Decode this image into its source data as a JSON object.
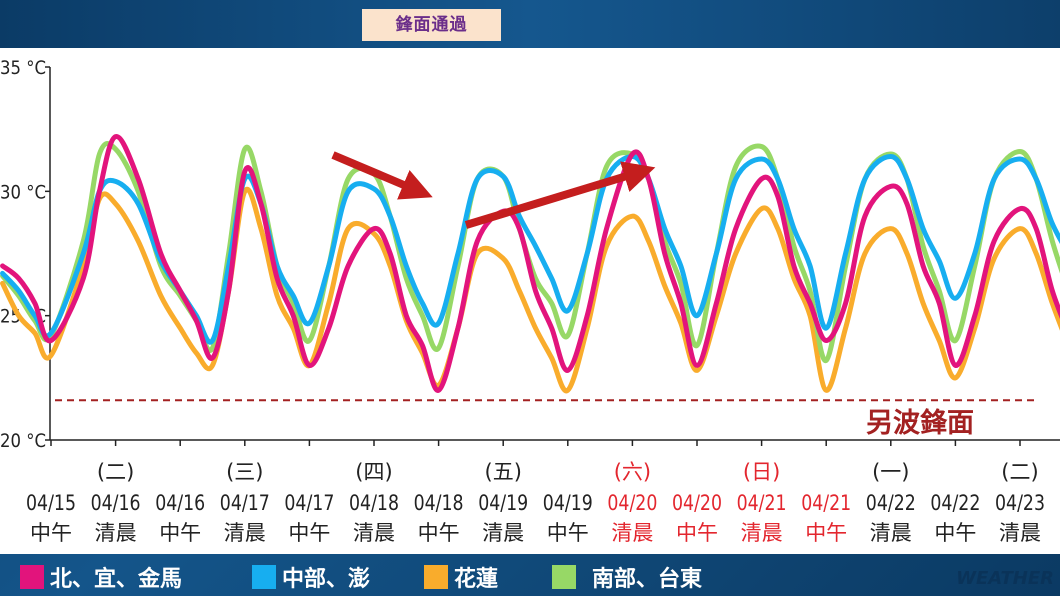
{
  "title_tag": "鋒面通過",
  "annotation_front": "另波鋒面",
  "watermark": "WEATHER",
  "legend": [
    {
      "label": "北、宜、金馬",
      "color": "#e2147c"
    },
    {
      "label": "中部、澎",
      "color": "#17aef0"
    },
    {
      "label": "花蓮",
      "color": "#f9ac2c"
    },
    {
      "label": "南部、台東",
      "color": "#97d866"
    }
  ],
  "chart_data": {
    "type": "line",
    "ylim": [
      20,
      35
    ],
    "yticks": [
      "20 °C",
      "25 °C",
      "30 °C",
      "35 °C"
    ],
    "y_tick_values": [
      20,
      25,
      30,
      35
    ],
    "xlim": [
      -0.85,
      15.75
    ],
    "x_tick_labels": [
      {
        "day": "",
        "date": "04/15",
        "time": "中午",
        "weekend": false
      },
      {
        "day": "(二)",
        "date": "04/16",
        "time": "清晨",
        "weekend": false
      },
      {
        "day": "",
        "date": "04/16",
        "time": "中午",
        "weekend": false
      },
      {
        "day": "(三)",
        "date": "04/17",
        "time": "清晨",
        "weekend": false
      },
      {
        "day": "",
        "date": "04/17",
        "time": "中午",
        "weekend": false
      },
      {
        "day": "(四)",
        "date": "04/18",
        "time": "清晨",
        "weekend": false
      },
      {
        "day": "",
        "date": "04/18",
        "time": "中午",
        "weekend": false
      },
      {
        "day": "(五)",
        "date": "04/19",
        "time": "清晨",
        "weekend": false
      },
      {
        "day": "",
        "date": "04/19",
        "time": "中午",
        "weekend": false
      },
      {
        "day": "(六)",
        "date": "04/20",
        "time": "清晨",
        "weekend": true
      },
      {
        "day": "",
        "date": "04/20",
        "time": "中午",
        "weekend": true
      },
      {
        "day": "(日)",
        "date": "04/21",
        "time": "清晨",
        "weekend": true
      },
      {
        "day": "",
        "date": "04/21",
        "time": "中午",
        "weekend": true
      },
      {
        "day": "(一)",
        "date": "04/22",
        "time": "清晨",
        "weekend": false
      },
      {
        "day": "",
        "date": "04/22",
        "time": "中午",
        "weekend": false
      },
      {
        "day": "(二)",
        "date": "04/23",
        "time": "清晨",
        "weekend": false
      }
    ],
    "reference_line": {
      "value": 21.6,
      "label": "另波鋒面"
    },
    "series": [
      {
        "name": "北、宜、金馬",
        "color": "#e2147c",
        "x": [
          -0.75,
          -0.5,
          -0.25,
          0.0,
          0.5,
          0.75,
          1.0,
          1.35,
          1.7,
          2.0,
          2.25,
          2.5,
          2.75,
          3.0,
          3.25,
          3.5,
          3.75,
          4.0,
          4.3,
          4.6,
          5.0,
          5.25,
          5.5,
          5.75,
          6.0,
          6.3,
          6.6,
          7.0,
          7.25,
          7.5,
          7.75,
          8.0,
          8.3,
          8.6,
          9.0,
          9.25,
          9.5,
          9.75,
          10.0,
          10.3,
          10.6,
          11.0,
          11.25,
          11.5,
          11.75,
          12.0,
          12.3,
          12.6,
          13.0,
          13.25,
          13.5,
          13.75,
          14.0,
          14.3,
          14.6,
          15.0,
          15.25,
          15.5,
          15.75
        ],
        "y": [
          27.0,
          26.5,
          25.5,
          24.0,
          26.5,
          30.0,
          32.2,
          30.5,
          27.5,
          26.0,
          24.8,
          23.3,
          26.0,
          30.8,
          29.5,
          26.5,
          25.0,
          23.0,
          24.5,
          27.0,
          28.5,
          27.5,
          25.0,
          23.8,
          22.0,
          24.5,
          28.0,
          29.2,
          28.5,
          26.0,
          24.5,
          22.8,
          25.0,
          28.5,
          31.5,
          30.5,
          27.5,
          25.5,
          23.0,
          25.5,
          28.5,
          30.5,
          29.8,
          27.0,
          25.5,
          24.0,
          25.5,
          29.0,
          30.2,
          29.5,
          27.0,
          25.5,
          23.0,
          25.0,
          28.0,
          29.3,
          28.5,
          26.0,
          24.3
        ]
      },
      {
        "name": "中部、澎",
        "color": "#17aef0",
        "x": [
          -0.75,
          -0.5,
          -0.25,
          0.0,
          0.5,
          0.75,
          1.0,
          1.35,
          1.7,
          2.0,
          2.25,
          2.5,
          2.75,
          3.0,
          3.25,
          3.5,
          3.75,
          4.0,
          4.3,
          4.6,
          5.0,
          5.25,
          5.5,
          5.75,
          6.0,
          6.3,
          6.6,
          7.0,
          7.25,
          7.5,
          7.75,
          8.0,
          8.3,
          8.6,
          9.0,
          9.25,
          9.5,
          9.75,
          10.0,
          10.3,
          10.6,
          11.0,
          11.25,
          11.5,
          11.75,
          12.0,
          12.3,
          12.6,
          13.0,
          13.25,
          13.5,
          13.75,
          14.0,
          14.3,
          14.6,
          15.0,
          15.25,
          15.5,
          15.75
        ],
        "y": [
          26.7,
          26.0,
          25.0,
          24.3,
          27.5,
          30.0,
          30.4,
          29.5,
          27.2,
          26.0,
          25.0,
          24.0,
          27.0,
          30.5,
          29.5,
          27.0,
          25.8,
          24.7,
          27.0,
          30.0,
          30.1,
          29.0,
          27.0,
          25.5,
          24.7,
          27.5,
          30.5,
          30.6,
          29.0,
          27.8,
          26.5,
          25.2,
          27.5,
          30.5,
          31.4,
          30.5,
          28.5,
          27.0,
          25.0,
          27.5,
          30.5,
          31.3,
          30.5,
          28.5,
          27.0,
          24.5,
          27.5,
          30.5,
          31.4,
          30.5,
          28.5,
          27.2,
          25.7,
          27.5,
          30.5,
          31.3,
          30.5,
          28.7,
          27.5
        ]
      },
      {
        "name": "花蓮",
        "color": "#f9ac2c",
        "x": [
          -0.75,
          -0.5,
          -0.25,
          0.0,
          0.5,
          0.75,
          1.0,
          1.35,
          1.7,
          2.0,
          2.25,
          2.5,
          2.75,
          3.0,
          3.25,
          3.5,
          3.75,
          4.0,
          4.3,
          4.6,
          5.0,
          5.25,
          5.5,
          5.75,
          6.0,
          6.3,
          6.6,
          7.0,
          7.25,
          7.5,
          7.75,
          8.0,
          8.3,
          8.6,
          9.0,
          9.25,
          9.5,
          9.75,
          10.0,
          10.3,
          10.6,
          11.0,
          11.25,
          11.5,
          11.75,
          12.0,
          12.3,
          12.6,
          13.0,
          13.25,
          13.5,
          13.75,
          14.0,
          14.3,
          14.6,
          15.0,
          15.25,
          15.5,
          15.75
        ],
        "y": [
          26.3,
          25.0,
          24.3,
          23.4,
          27.0,
          29.7,
          29.5,
          28.0,
          25.8,
          24.5,
          23.5,
          23.0,
          26.0,
          30.0,
          28.5,
          25.8,
          24.5,
          23.0,
          25.5,
          28.5,
          28.3,
          27.0,
          24.8,
          23.5,
          22.2,
          24.5,
          27.5,
          27.3,
          26.0,
          24.5,
          23.3,
          22.0,
          24.5,
          27.8,
          29.0,
          28.0,
          26.2,
          24.7,
          22.8,
          25.0,
          27.5,
          29.3,
          28.5,
          26.5,
          25.0,
          22.0,
          24.5,
          27.5,
          28.5,
          27.5,
          25.5,
          24.0,
          22.5,
          24.5,
          27.3,
          28.5,
          27.5,
          25.5,
          23.8
        ]
      },
      {
        "name": "南部、台東",
        "color": "#97d866",
        "x": [
          -0.75,
          -0.5,
          -0.25,
          0.0,
          0.5,
          0.75,
          1.0,
          1.35,
          1.7,
          2.0,
          2.25,
          2.5,
          2.75,
          3.0,
          3.25,
          3.5,
          3.75,
          4.0,
          4.3,
          4.6,
          5.0,
          5.25,
          5.5,
          5.75,
          6.0,
          6.3,
          6.6,
          7.0,
          7.25,
          7.5,
          7.75,
          8.0,
          8.3,
          8.6,
          9.0,
          9.25,
          9.5,
          9.75,
          10.0,
          10.3,
          10.6,
          11.0,
          11.25,
          11.5,
          11.75,
          12.0,
          12.3,
          12.6,
          13.0,
          13.25,
          13.5,
          13.75,
          14.0,
          14.3,
          14.6,
          15.0,
          15.25,
          15.5,
          15.75
        ],
        "y": [
          26.6,
          25.8,
          24.8,
          24.2,
          28.0,
          31.5,
          31.7,
          30.0,
          27.0,
          25.8,
          24.8,
          23.7,
          27.5,
          31.7,
          30.0,
          27.0,
          25.5,
          24.0,
          27.0,
          30.5,
          30.7,
          29.0,
          26.5,
          25.0,
          23.7,
          27.0,
          30.5,
          30.6,
          28.5,
          26.5,
          25.5,
          24.2,
          27.5,
          31.0,
          31.5,
          30.5,
          28.0,
          26.3,
          23.8,
          27.5,
          31.0,
          31.8,
          30.5,
          27.8,
          26.0,
          23.2,
          27.0,
          30.5,
          31.5,
          30.5,
          27.8,
          26.0,
          24.0,
          27.0,
          30.5,
          31.6,
          30.5,
          28.0,
          26.0
        ]
      }
    ]
  }
}
